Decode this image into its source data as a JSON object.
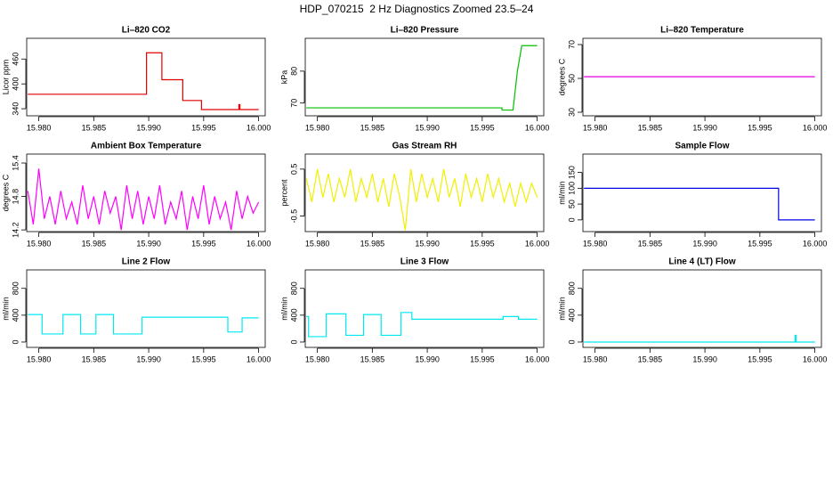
{
  "title": "HDP_070215  2 Hz Diagnostics Zoomed 23.5–24",
  "chart_data": [
    {
      "type": "line",
      "title": "Li–820 CO2",
      "y_label": "Licor ppm",
      "color": "#e00000",
      "x": [
        15.979,
        15.9898,
        15.9898,
        15.9912,
        15.9912,
        15.9931,
        15.9931,
        15.9948,
        15.9948,
        15.9982,
        15.9982,
        15.9983,
        15.9983,
        16
      ],
      "values": [
        375,
        375,
        475,
        475,
        410,
        410,
        360,
        360,
        338,
        338,
        350,
        350,
        338,
        338
      ],
      "xlim": [
        15.9789,
        16.0006
      ],
      "xticks": [
        {
          "value": 15.98,
          "label": "15.980"
        },
        15.985,
        {
          "value": 15.99,
          "label": "15.990"
        },
        15.995,
        {
          "value": 16,
          "label": "16.000"
        }
      ],
      "ylim": [
        323,
        510
      ],
      "yticks": [
        340,
        400,
        460
      ]
    },
    {
      "type": "line",
      "title": "Li–820 Pressure",
      "y_label": "kPa",
      "color": "#00c000",
      "x": [
        15.979,
        15.9968,
        15.9968,
        15.9978,
        15.9982,
        15.9986,
        16
      ],
      "values": [
        68.5,
        68.5,
        67.8,
        67.8,
        80,
        88,
        88
      ],
      "xlim": [
        15.9789,
        16.0006
      ],
      "xticks": [
        {
          "value": 15.98,
          "label": "15.980"
        },
        15.985,
        {
          "value": 15.99,
          "label": "15.990"
        },
        15.995,
        {
          "value": 16,
          "label": "16.000"
        }
      ],
      "ylim": [
        66,
        90.3
      ],
      "yticks": [
        70,
        80
      ]
    },
    {
      "type": "line",
      "title": "Li–820 Temperature",
      "y_label": "degrees C",
      "color": "#e000e0",
      "x": [
        15.979,
        16
      ],
      "values": [
        51,
        51
      ],
      "xlim": [
        15.9789,
        16.0006
      ],
      "xticks": [
        {
          "value": 15.98,
          "label": "15.980"
        },
        15.985,
        {
          "value": 15.99,
          "label": "15.990"
        },
        15.995,
        {
          "value": 16,
          "label": "16.000"
        }
      ],
      "ylim": [
        27.9,
        73.7
      ],
      "yticks": [
        30,
        50,
        70
      ]
    },
    {
      "type": "line",
      "title": "Ambient Box Temperature",
      "y_label": "degrees C",
      "color": "#ff00ff",
      "x": [
        15.979,
        15.9795,
        15.98,
        15.9805,
        15.981,
        15.9815,
        15.982,
        15.9825,
        15.983,
        15.9835,
        15.984,
        15.9845,
        15.985,
        15.9855,
        15.986,
        15.9865,
        15.987,
        15.9875,
        15.988,
        15.9885,
        15.989,
        15.9895,
        15.99,
        15.9905,
        15.991,
        15.9915,
        15.992,
        15.9925,
        15.993,
        15.9935,
        15.994,
        15.9945,
        15.995,
        15.9955,
        15.996,
        15.9965,
        15.997,
        15.9975,
        15.998,
        15.9985,
        15.999,
        15.9995,
        16
      ],
      "values": [
        14.9,
        14.3,
        15.3,
        14.4,
        14.8,
        14.3,
        14.9,
        14.4,
        14.7,
        14.3,
        15.0,
        14.4,
        14.8,
        14.3,
        14.9,
        14.5,
        14.8,
        14.2,
        15.0,
        14.4,
        14.9,
        14.3,
        14.8,
        14.4,
        15.0,
        14.3,
        14.7,
        14.4,
        14.9,
        14.2,
        14.8,
        14.4,
        15.0,
        14.3,
        14.8,
        14.4,
        14.7,
        14.2,
        14.9,
        14.4,
        14.8,
        14.5,
        14.7
      ],
      "xlim": [
        15.9789,
        16.0006
      ],
      "xticks": [
        {
          "value": 15.98,
          "label": "15.980"
        },
        15.985,
        {
          "value": 15.99,
          "label": "15.990"
        },
        15.995,
        {
          "value": 16,
          "label": "16.000"
        }
      ],
      "ylim": [
        14.17,
        15.56
      ],
      "yticks": [
        14.2,
        14.8,
        15.4
      ]
    },
    {
      "type": "line",
      "title": "Gas Stream RH",
      "y_label": "percent",
      "color": "#f0f000",
      "x": [
        15.979,
        15.9795,
        15.98,
        15.9805,
        15.981,
        15.9815,
        15.982,
        15.9825,
        15.983,
        15.9835,
        15.984,
        15.9845,
        15.985,
        15.9855,
        15.986,
        15.9865,
        15.987,
        15.9875,
        15.988,
        15.9885,
        15.989,
        15.9895,
        15.99,
        15.9905,
        15.991,
        15.9915,
        15.992,
        15.9925,
        15.993,
        15.9935,
        15.994,
        15.9945,
        15.995,
        15.9955,
        15.996,
        15.9965,
        15.997,
        15.9975,
        15.998,
        15.9985,
        15.999,
        15.9995,
        16
      ],
      "values": [
        0.3,
        -0.2,
        0.5,
        -0.1,
        0.4,
        -0.2,
        0.3,
        -0.1,
        0.5,
        -0.2,
        0.3,
        -0.1,
        0.4,
        -0.2,
        0.3,
        -0.3,
        0.4,
        -0.1,
        -0.8,
        0.5,
        -0.2,
        0.4,
        -0.1,
        0.3,
        -0.2,
        0.5,
        -0.1,
        0.3,
        -0.3,
        0.4,
        -0.1,
        0.3,
        -0.2,
        0.4,
        -0.1,
        0.3,
        -0.2,
        0.2,
        -0.3,
        0.2,
        -0.2,
        0.2,
        -0.1
      ],
      "xlim": [
        15.9789,
        16.0006
      ],
      "xticks": [
        {
          "value": 15.98,
          "label": "15.980"
        },
        15.985,
        {
          "value": 15.99,
          "label": "15.990"
        },
        15.995,
        {
          "value": 16,
          "label": "16.000"
        }
      ],
      "ylim": [
        -0.83,
        0.82
      ],
      "yticks": [
        -0.5,
        0.5
      ]
    },
    {
      "type": "line",
      "title": "Sample Flow",
      "y_label": "ml/min",
      "color": "#0000e0",
      "x": [
        15.979,
        15.9967,
        15.9967,
        16
      ],
      "values": [
        100,
        100,
        0,
        0
      ],
      "xlim": [
        15.9789,
        16.0006
      ],
      "xticks": [
        {
          "value": 15.98,
          "label": "15.980"
        },
        15.985,
        {
          "value": 15.99,
          "label": "15.990"
        },
        15.995,
        {
          "value": 16,
          "label": "16.000"
        }
      ],
      "ylim": [
        -37,
        208
      ],
      "yticks": [
        0,
        50,
        100,
        150
      ]
    },
    {
      "type": "line",
      "title": "Line 2 Flow",
      "y_label": "ml/min",
      "color": "#00e8f0",
      "x": [
        15.979,
        15.9803,
        15.9803,
        15.9822,
        15.9822,
        15.9838,
        15.9838,
        15.9852,
        15.9852,
        15.9868,
        15.9868,
        15.9894,
        15.9894,
        15.9972,
        15.9972,
        15.9985,
        15.9985,
        16
      ],
      "values": [
        410,
        410,
        120,
        120,
        410,
        410,
        120,
        120,
        410,
        410,
        120,
        120,
        370,
        370,
        150,
        150,
        360,
        360
      ],
      "xlim": [
        15.9789,
        16.0006
      ],
      "xticks": [
        {
          "value": 15.98,
          "label": "15.980"
        },
        15.985,
        {
          "value": 15.99,
          "label": "15.990"
        },
        15.995,
        {
          "value": 16,
          "label": "16.000"
        }
      ],
      "ylim": [
        -80,
        1075
      ],
      "yticks": [
        0,
        400,
        800
      ]
    },
    {
      "type": "line",
      "title": "Line 3 Flow",
      "y_label": "ml/min",
      "color": "#00e8f0",
      "x": [
        15.979,
        15.9792,
        15.9792,
        15.9808,
        15.9808,
        15.9826,
        15.9826,
        15.9842,
        15.9842,
        15.9858,
        15.9858,
        15.9876,
        15.9876,
        15.9886,
        15.9886,
        15.9969,
        15.9969,
        15.9983,
        15.9983,
        16
      ],
      "values": [
        380,
        380,
        80,
        80,
        420,
        420,
        100,
        100,
        410,
        410,
        100,
        100,
        440,
        440,
        340,
        340,
        380,
        380,
        340,
        340
      ],
      "xlim": [
        15.9789,
        16.0006
      ],
      "xticks": [
        {
          "value": 15.98,
          "label": "15.980"
        },
        15.985,
        {
          "value": 15.99,
          "label": "15.990"
        },
        15.995,
        {
          "value": 16,
          "label": "16.000"
        }
      ],
      "ylim": [
        -80,
        1075
      ],
      "yticks": [
        0,
        400,
        800
      ]
    },
    {
      "type": "line",
      "title": "Line 4 (LT) Flow",
      "y_label": "ml/min",
      "color": "#00e8f0",
      "x": [
        15.979,
        15.9982,
        15.9982,
        15.9983,
        15.9983,
        16
      ],
      "values": [
        0,
        0,
        100,
        100,
        0,
        0
      ],
      "xlim": [
        15.9789,
        16.0006
      ],
      "xticks": [
        {
          "value": 15.98,
          "label": "15.980"
        },
        15.985,
        {
          "value": 15.99,
          "label": "15.990"
        },
        15.995,
        {
          "value": 16,
          "label": "16.000"
        }
      ],
      "ylim": [
        -80,
        1075
      ],
      "yticks": [
        0,
        400,
        800
      ]
    }
  ]
}
